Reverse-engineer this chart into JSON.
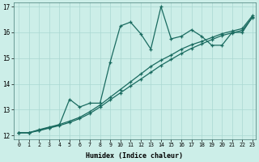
{
  "xlabel": "Humidex (Indice chaleur)",
  "ylabel": "",
  "background_color": "#cceee8",
  "grid_color": "#aad8d2",
  "line_color": "#1a6b60",
  "xlim": [
    -0.5,
    23.3
  ],
  "ylim": [
    11.85,
    17.15
  ],
  "yticks": [
    12,
    13,
    14,
    15,
    16,
    17
  ],
  "xticks": [
    0,
    1,
    2,
    3,
    4,
    5,
    6,
    7,
    8,
    9,
    10,
    11,
    12,
    13,
    14,
    15,
    16,
    17,
    18,
    19,
    20,
    21,
    22,
    23
  ],
  "line1_x": [
    0,
    1,
    2,
    3,
    4,
    5,
    6,
    7,
    8,
    9,
    10,
    11,
    12,
    13,
    14,
    15,
    16,
    17,
    18,
    19,
    20,
    21,
    22,
    23
  ],
  "line1_y": [
    12.1,
    12.1,
    12.2,
    12.3,
    12.4,
    13.4,
    13.1,
    13.25,
    13.25,
    14.85,
    16.25,
    16.4,
    15.95,
    15.35,
    17.0,
    15.75,
    15.85,
    16.1,
    15.85,
    15.5,
    15.5,
    16.0,
    16.0,
    16.6
  ],
  "line2_x": [
    0,
    1,
    2,
    3,
    4,
    5,
    6,
    7,
    8,
    9,
    10,
    11,
    12,
    13,
    14,
    15,
    16,
    17,
    18,
    19,
    20,
    21,
    22,
    23
  ],
  "line2_y": [
    12.1,
    12.1,
    12.18,
    12.28,
    12.38,
    12.5,
    12.65,
    12.85,
    13.1,
    13.38,
    13.65,
    13.92,
    14.18,
    14.45,
    14.72,
    14.95,
    15.18,
    15.38,
    15.55,
    15.72,
    15.88,
    15.98,
    16.08,
    16.58
  ],
  "line3_x": [
    0,
    1,
    2,
    3,
    4,
    5,
    6,
    7,
    8,
    9,
    10,
    11,
    12,
    13,
    14,
    15,
    16,
    17,
    18,
    19,
    20,
    21,
    22,
    23
  ],
  "line3_y": [
    12.1,
    12.1,
    12.22,
    12.32,
    12.42,
    12.55,
    12.7,
    12.92,
    13.18,
    13.48,
    13.78,
    14.08,
    14.38,
    14.68,
    14.92,
    15.12,
    15.35,
    15.52,
    15.65,
    15.8,
    15.95,
    16.05,
    16.15,
    16.65
  ]
}
